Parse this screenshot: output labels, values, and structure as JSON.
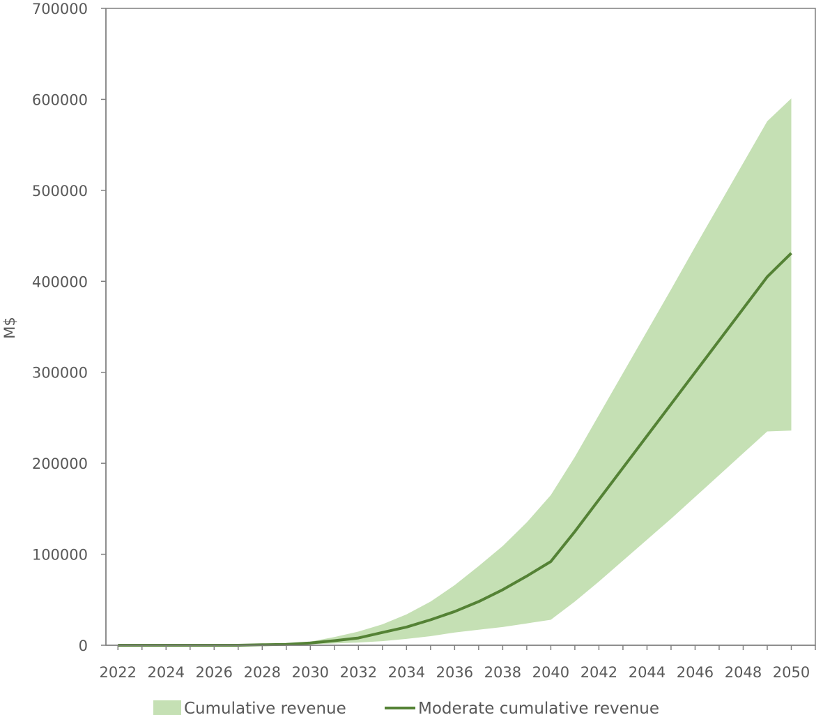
{
  "chart_data": {
    "type": "area",
    "title": "",
    "xlabel": "",
    "ylabel": "M$",
    "xlim": [
      2022,
      2051
    ],
    "ylim": [
      0,
      700000
    ],
    "y_ticks": [
      "0",
      "100000",
      "200000",
      "300000",
      "400000",
      "500000",
      "600000",
      "700000"
    ],
    "x_ticks": [
      "2022",
      "2024",
      "2026",
      "2028",
      "2030",
      "2032",
      "2034",
      "2036",
      "2038",
      "2040",
      "2042",
      "2044",
      "2046",
      "2048",
      "2050"
    ],
    "grid": false,
    "legend_position": "bottom",
    "x": [
      2022,
      2023,
      2024,
      2025,
      2026,
      2027,
      2028,
      2029,
      2030,
      2031,
      2032,
      2033,
      2034,
      2035,
      2036,
      2037,
      2038,
      2039,
      2040,
      2041,
      2042,
      2043,
      2044,
      2045,
      2046,
      2047,
      2048,
      2049,
      2050
    ],
    "series": [
      {
        "name": "Cumulative revenue",
        "kind": "band",
        "color": "#c5e0b4",
        "lower": [
          0,
          0,
          0,
          0,
          0,
          0,
          0,
          500,
          1000,
          2000,
          3000,
          4500,
          7000,
          10000,
          14000,
          17000,
          20000,
          24000,
          28000,
          48000,
          70000,
          93000,
          116000,
          139000,
          163000,
          187000,
          211000,
          235000,
          236000
        ],
        "upper": [
          0,
          0,
          0,
          0,
          0,
          0,
          1000,
          2000,
          4000,
          9000,
          15000,
          23000,
          34000,
          48000,
          66000,
          87000,
          109000,
          135000,
          165000,
          207000,
          253000,
          299000,
          345000,
          391000,
          438000,
          484000,
          530000,
          576000,
          601000
        ]
      },
      {
        "name": "Moderate cumulative revenue",
        "kind": "line",
        "color": "#548235",
        "values": [
          0,
          0,
          0,
          0,
          0,
          0,
          500,
          1000,
          2500,
          5000,
          8000,
          14000,
          20000,
          28000,
          37000,
          48000,
          61000,
          76000,
          92000,
          125000,
          160000,
          195000,
          230000,
          265000,
          300000,
          335000,
          370000,
          405000,
          431000
        ]
      }
    ]
  }
}
